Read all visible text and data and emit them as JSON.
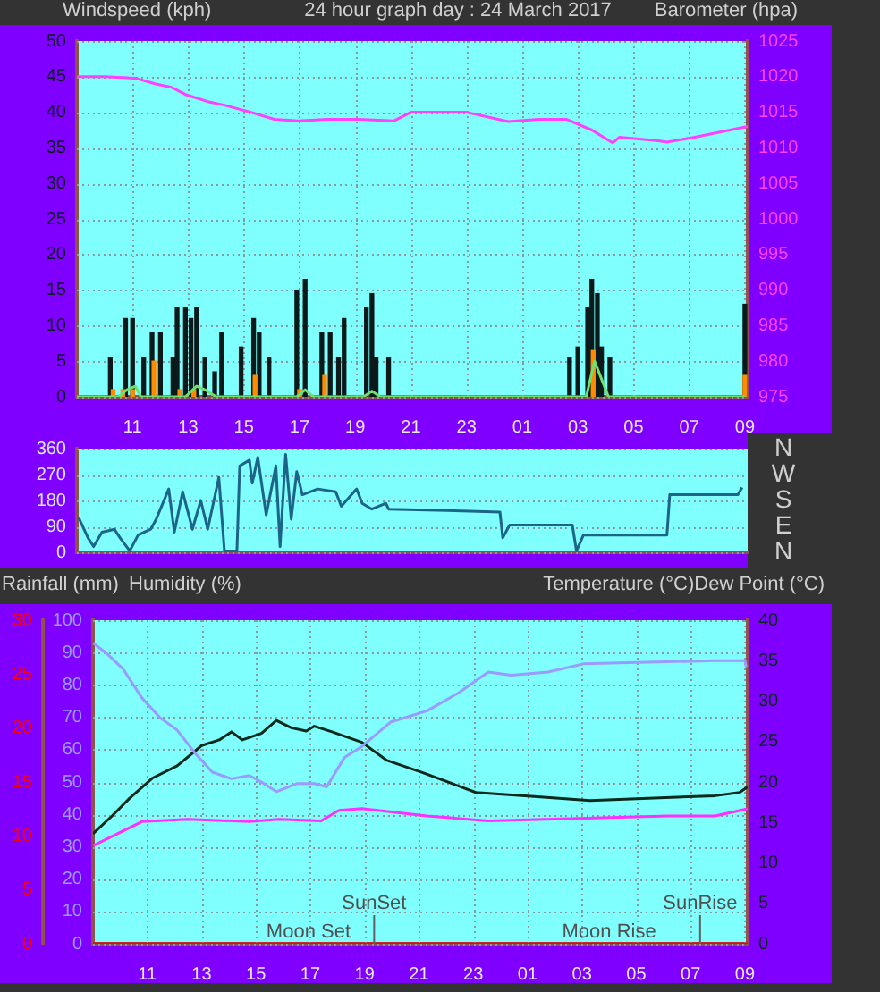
{
  "chart_data": [
    {
      "type": "line",
      "title": "24 hour graph day : 24 March 2017",
      "ylabel": "Windspeed (kph)",
      "y2label": "Barometer (hpa)",
      "grid": true,
      "xlim": [
        "2017-03-24T09:00",
        "2017-03-25T09:06"
      ],
      "xticks": [
        {
          "value": "2017-03-24T11:00",
          "label": "11"
        },
        {
          "value": "2017-03-24T13:00",
          "label": "13"
        },
        {
          "value": "2017-03-24T15:00",
          "label": "15"
        },
        {
          "value": "2017-03-24T17:00",
          "label": "17"
        },
        {
          "value": "2017-03-24T19:00",
          "label": "19"
        },
        {
          "value": "2017-03-24T21:00",
          "label": "21"
        },
        {
          "value": "2017-03-24T23:00",
          "label": "23"
        },
        {
          "value": "2017-03-25T01:00",
          "label": "01"
        },
        {
          "value": "2017-03-25T03:00",
          "label": "03"
        },
        {
          "value": "2017-03-25T05:00",
          "label": "05"
        },
        {
          "value": "2017-03-25T07:00",
          "label": "07"
        },
        {
          "value": "2017-03-25T09:00",
          "label": "09"
        }
      ],
      "ylim": [
        0,
        50
      ],
      "yticks": [
        0,
        5,
        10,
        15,
        20,
        25,
        30,
        35,
        40,
        45,
        50
      ],
      "y2lim": [
        975,
        1025
      ],
      "y2ticks": [
        975,
        980,
        985,
        990,
        995,
        1000,
        1005,
        1010,
        1015,
        1020,
        1025
      ],
      "series": [
        {
          "type": "bar",
          "color": "#ff8c00",
          "x": [
            "2017-03-24T10:18",
            "2017-03-24T10:39",
            "2017-03-24T11:00",
            "2017-03-24T11:46",
            "2017-03-24T12:42",
            "2017-03-24T13:12",
            "2017-03-24T15:24",
            "2017-03-24T17:00",
            "2017-03-24T17:54",
            "2017-03-25T03:33",
            "2017-03-25T09:00"
          ],
          "values": [
            1,
            1,
            1,
            5,
            1,
            1,
            3,
            1,
            3,
            6.5,
            3
          ]
        },
        {
          "type": "bar",
          "color": "#0a1a1a",
          "x": [
            "2017-03-24T10:12",
            "2017-03-24T10:45",
            "2017-03-24T11:00",
            "2017-03-24T11:24",
            "2017-03-24T11:42",
            "2017-03-24T12:00",
            "2017-03-24T12:27",
            "2017-03-24T12:36",
            "2017-03-24T12:54",
            "2017-03-24T13:06",
            "2017-03-24T13:18",
            "2017-03-24T13:36",
            "2017-03-24T13:57",
            "2017-03-24T14:12",
            "2017-03-24T14:54",
            "2017-03-24T15:21",
            "2017-03-24T15:33",
            "2017-03-24T15:54",
            "2017-03-24T16:54",
            "2017-03-24T17:12",
            "2017-03-24T17:48",
            "2017-03-24T18:06",
            "2017-03-24T18:24",
            "2017-03-24T18:36",
            "2017-03-24T19:24",
            "2017-03-24T19:36",
            "2017-03-24T19:45",
            "2017-03-24T20:12",
            "2017-03-25T02:42",
            "2017-03-25T03:00",
            "2017-03-25T03:21",
            "2017-03-25T03:30",
            "2017-03-25T03:42",
            "2017-03-25T03:51",
            "2017-03-25T04:09",
            "2017-03-25T09:00"
          ],
          "values": [
            5.5,
            11,
            11,
            5.5,
            9,
            9,
            5.5,
            12.5,
            12.5,
            11,
            12.5,
            5.5,
            3.5,
            9,
            7,
            11,
            9,
            5.5,
            15,
            16.5,
            9,
            9,
            5.5,
            11,
            12.5,
            14.5,
            5.5,
            5.5,
            5.5,
            7,
            12.5,
            16.5,
            14.5,
            7,
            5.5,
            13
          ]
        },
        {
          "color": "#70e070",
          "x": [
            "2017-03-24T09:00",
            "2017-03-24T10:30",
            "2017-03-24T10:48",
            "2017-03-24T11:06",
            "2017-03-24T11:18",
            "2017-03-24T12:54",
            "2017-03-24T13:18",
            "2017-03-24T13:36",
            "2017-03-24T14:00",
            "2017-03-24T16:54",
            "2017-03-24T17:12",
            "2017-03-24T17:30",
            "2017-03-24T19:18",
            "2017-03-24T19:36",
            "2017-03-24T19:54",
            "2017-03-25T03:18",
            "2017-03-25T03:36",
            "2017-03-25T03:54",
            "2017-03-25T04:06",
            "2017-03-25T09:00"
          ],
          "values": [
            0,
            0,
            1,
            1.5,
            0,
            0,
            1.5,
            1,
            0,
            0,
            1,
            0,
            0,
            0.8,
            0,
            0,
            5,
            2,
            0,
            0
          ]
        },
        {
          "color": "#ff40ff",
          "axis": "y2",
          "x": [
            "2017-03-24T09:00",
            "2017-03-24T10:00",
            "2017-03-24T11:06",
            "2017-03-24T11:48",
            "2017-03-24T12:24",
            "2017-03-24T12:54",
            "2017-03-24T13:42",
            "2017-03-24T14:18",
            "2017-03-24T15:15",
            "2017-03-24T16:06",
            "2017-03-24T16:57",
            "2017-03-24T18:00",
            "2017-03-24T19:06",
            "2017-03-24T20:24",
            "2017-03-24T21:00",
            "2017-03-24T23:00",
            "2017-03-25T00:30",
            "2017-03-25T01:36",
            "2017-03-25T02:36",
            "2017-03-25T03:30",
            "2017-03-25T04:15",
            "2017-03-25T04:30",
            "2017-03-25T05:54",
            "2017-03-25T06:12",
            "2017-03-25T07:12",
            "2017-03-25T09:06"
          ],
          "values": [
            1020,
            1020,
            1019.8,
            1019,
            1018.5,
            1017.5,
            1016.5,
            1016,
            1015,
            1014,
            1013.8,
            1014,
            1014,
            1013.8,
            1015,
            1015,
            1013.7,
            1014,
            1014,
            1012.5,
            1010.7,
            1011.5,
            1011,
            1010.8,
            1011.5,
            1013
          ]
        }
      ]
    },
    {
      "type": "line",
      "grid": "y",
      "tick_labels": "y",
      "xlim": [
        "2017-03-24T09:00",
        "2017-03-25T09:06"
      ],
      "ylim": [
        0,
        360
      ],
      "yticks": [
        0,
        90,
        180,
        270,
        360
      ],
      "annotations": [
        "N",
        "W",
        "S",
        "E",
        "N"
      ],
      "series": [
        {
          "color": "#1c6488",
          "x": [
            "2017-03-24T09:04",
            "2017-03-24T09:24",
            "2017-03-24T09:36",
            "2017-03-24T09:54",
            "2017-03-24T10:21",
            "2017-03-24T10:33",
            "2017-03-24T10:54",
            "2017-03-24T11:12",
            "2017-03-24T11:39",
            "2017-03-24T11:51",
            "2017-03-24T12:18",
            "2017-03-24T12:30",
            "2017-03-24T12:48",
            "2017-03-24T13:09",
            "2017-03-24T13:27",
            "2017-03-24T13:42",
            "2017-03-24T14:06",
            "2017-03-24T14:18",
            "2017-03-24T14:45",
            "2017-03-24T14:51",
            "2017-03-24T15:12",
            "2017-03-24T15:18",
            "2017-03-24T15:30",
            "2017-03-24T15:48",
            "2017-03-24T16:09",
            "2017-03-24T16:18",
            "2017-03-24T16:30",
            "2017-03-24T16:42",
            "2017-03-24T16:54",
            "2017-03-24T17:06",
            "2017-03-24T17:39",
            "2017-03-24T18:18",
            "2017-03-24T18:30",
            "2017-03-24T19:03",
            "2017-03-24T19:15",
            "2017-03-24T19:36",
            "2017-03-24T20:06",
            "2017-03-24T20:12",
            "2017-03-25T00:12",
            "2017-03-25T00:18",
            "2017-03-25T00:33",
            "2017-03-25T02:48",
            "2017-03-25T02:57",
            "2017-03-25T03:12",
            "2017-03-25T04:09",
            "2017-03-25T06:12",
            "2017-03-25T06:18",
            "2017-03-25T08:45",
            "2017-03-25T08:54"
          ],
          "values": [
            120,
            50,
            20,
            70,
            80,
            50,
            5,
            60,
            80,
            115,
            220,
            70,
            210,
            80,
            180,
            80,
            260,
            5,
            5,
            300,
            320,
            240,
            330,
            130,
            300,
            20,
            340,
            115,
            280,
            200,
            220,
            210,
            160,
            220,
            170,
            150,
            170,
            150,
            140,
            50,
            95,
            95,
            5,
            60,
            60,
            60,
            200,
            200,
            225
          ]
        }
      ]
    },
    {
      "type": "line",
      "ylabel": "Humidity (%)",
      "y3label": "Rainfall (mm)",
      "y2label": "Temperature (°C)Dew Point (°C)",
      "grid": true,
      "xlim": [
        "2017-03-24T09:00",
        "2017-03-25T09:06"
      ],
      "xticks": [
        {
          "value": "2017-03-24T11:00",
          "label": "11"
        },
        {
          "value": "2017-03-24T13:00",
          "label": "13"
        },
        {
          "value": "2017-03-24T15:00",
          "label": "15"
        },
        {
          "value": "2017-03-24T17:00",
          "label": "17"
        },
        {
          "value": "2017-03-24T19:00",
          "label": "19"
        },
        {
          "value": "2017-03-24T21:00",
          "label": "21"
        },
        {
          "value": "2017-03-24T23:00",
          "label": "23"
        },
        {
          "value": "2017-03-25T01:00",
          "label": "01"
        },
        {
          "value": "2017-03-25T03:00",
          "label": "03"
        },
        {
          "value": "2017-03-25T05:00",
          "label": "05"
        },
        {
          "value": "2017-03-25T07:00",
          "label": "07"
        },
        {
          "value": "2017-03-25T09:00",
          "label": "09"
        }
      ],
      "ylim": [
        0,
        100
      ],
      "yticks": [
        0,
        10,
        20,
        30,
        40,
        50,
        60,
        70,
        80,
        90,
        100
      ],
      "y3lim": [
        0,
        30
      ],
      "y3ticks": [
        0,
        5,
        10,
        15,
        20,
        25,
        30
      ],
      "y2lim": [
        0,
        40
      ],
      "y2ticks": [
        0,
        5,
        10,
        15,
        20,
        25,
        30,
        35,
        40
      ],
      "ref_lines": [
        {
          "axis": "x",
          "value": "2017-03-24T19:21",
          "label": "SunSet"
        },
        {
          "axis": "x",
          "value": "2017-03-25T07:21",
          "label": "SunRise"
        }
      ],
      "annotations": [
        {
          "text": "Moon Set",
          "x": "2017-03-24T16:56",
          "y": 0
        },
        {
          "text": "Moon Rise",
          "x": "2017-03-25T04:00",
          "y": 0
        }
      ],
      "series": [
        {
          "color": "#9a9aff",
          "x": [
            "2017-03-24T09:00",
            "2017-03-24T09:28",
            "2017-03-24T10:06",
            "2017-03-24T10:48",
            "2017-03-24T11:27",
            "2017-03-24T12:06",
            "2017-03-24T12:45",
            "2017-03-24T13:24",
            "2017-03-24T14:06",
            "2017-03-24T14:45",
            "2017-03-24T15:12",
            "2017-03-24T15:45",
            "2017-03-24T16:30",
            "2017-03-24T17:09",
            "2017-03-24T17:36",
            "2017-03-24T18:15",
            "2017-03-24T18:54",
            "2017-03-24T19:57",
            "2017-03-24T21:18",
            "2017-03-24T22:27",
            "2017-03-24T23:33",
            "2017-03-25T00:24",
            "2017-03-25T01:45",
            "2017-03-25T03:03",
            "2017-03-25T07:54",
            "2017-03-25T09:00",
            "2017-03-25T09:03"
          ],
          "values": [
            93,
            90,
            85,
            76,
            70,
            66,
            59,
            53,
            51,
            52,
            50,
            47,
            49.5,
            49.5,
            48.5,
            57.5,
            61,
            68.5,
            72,
            77.5,
            84,
            83,
            84,
            86.5,
            87.5,
            87.5,
            85.5
          ]
        },
        {
          "color": "#ff0000",
          "axis": "y3",
          "x": [
            "2017-03-24T09:00",
            "2017-03-25T09:06"
          ],
          "values": [
            0,
            0
          ]
        },
        {
          "color": "#0c2a1c",
          "axis": "y2",
          "x": [
            "2017-03-24T09:00",
            "2017-03-24T09:42",
            "2017-03-24T10:21",
            "2017-03-24T11:12",
            "2017-03-24T12:06",
            "2017-03-24T13:00",
            "2017-03-24T13:39",
            "2017-03-24T14:06",
            "2017-03-24T14:30",
            "2017-03-24T15:12",
            "2017-03-24T15:45",
            "2017-03-24T16:18",
            "2017-03-24T16:51",
            "2017-03-24T17:09",
            "2017-03-24T17:48",
            "2017-03-24T18:54",
            "2017-03-24T19:48",
            "2017-03-24T21:06",
            "2017-03-24T23:06",
            "2017-03-25T00:54",
            "2017-03-25T03:18",
            "2017-03-25T07:54",
            "2017-03-25T08:48",
            "2017-03-25T09:06"
          ],
          "values": [
            13.6,
            15.8,
            18.0,
            20.5,
            22.0,
            24.5,
            25.2,
            26.2,
            25.2,
            26.0,
            27.6,
            26.7,
            26.3,
            26.9,
            26.2,
            24.9,
            22.7,
            21.2,
            18.7,
            18.3,
            17.7,
            18.3,
            18.7,
            19.4
          ]
        },
        {
          "color": "#ff30ff",
          "axis": "y2",
          "x": [
            "2017-03-24T09:00",
            "2017-03-24T09:54",
            "2017-03-24T10:48",
            "2017-03-24T12:30",
            "2017-03-24T14:45",
            "2017-03-24T15:51",
            "2017-03-24T17:24",
            "2017-03-24T18:03",
            "2017-03-24T18:54",
            "2017-03-24T21:18",
            "2017-03-24T23:33",
            "2017-03-25T06:09",
            "2017-03-25T07:54",
            "2017-03-25T09:06"
          ],
          "values": [
            12.1,
            13.6,
            15.1,
            15.4,
            15.1,
            15.4,
            15.2,
            16.5,
            16.7,
            15.8,
            15.2,
            15.8,
            15.8,
            16.7
          ]
        }
      ]
    }
  ]
}
